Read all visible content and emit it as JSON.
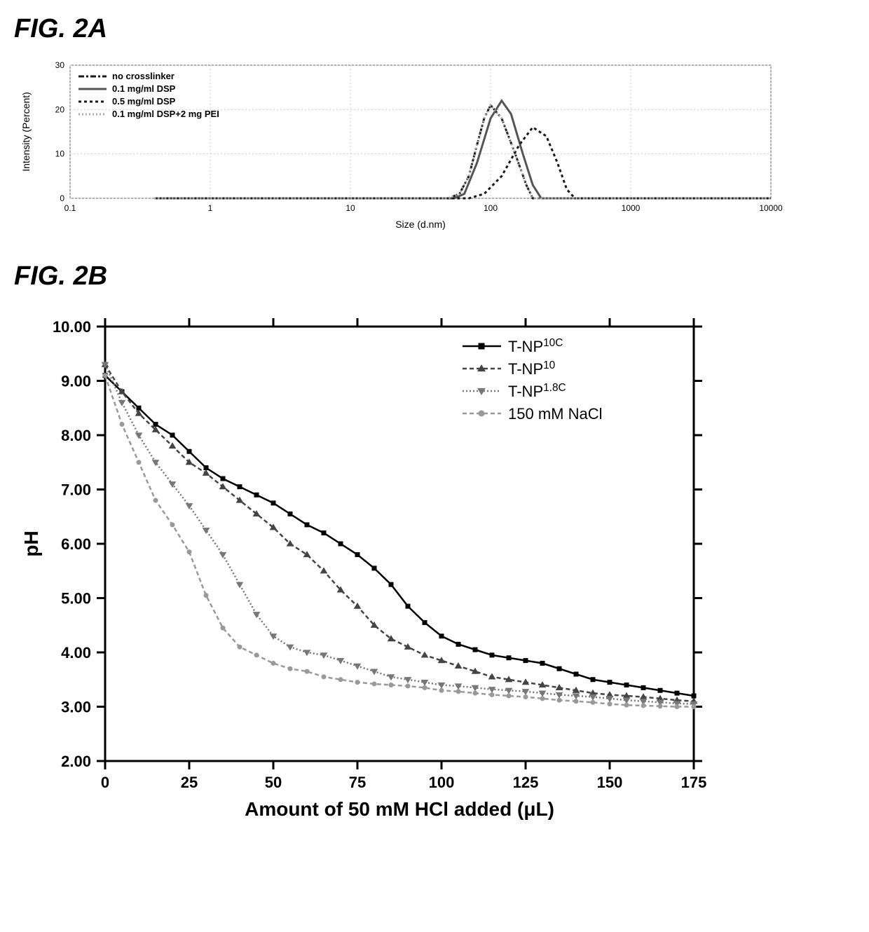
{
  "figureA": {
    "title": "FIG. 2A",
    "chart": {
      "type": "line",
      "xlabel": "Size (d.nm)",
      "ylabel": "Intensity (Percent)",
      "xscale": "log",
      "xlim": [
        0.1,
        10000
      ],
      "ylim": [
        0,
        30
      ],
      "xticks": [
        0.1,
        1,
        10,
        100,
        1000,
        10000
      ],
      "yticks": [
        0,
        10,
        20,
        30
      ],
      "background_color": "#ffffff",
      "grid_color": "#cccccc",
      "border_color": "#666666",
      "label_fontsize": 14,
      "tick_fontsize": 12,
      "legend": {
        "position": "top-left",
        "fontsize": 13,
        "fontweight": "bold",
        "items": [
          {
            "label": "no crosslinker",
            "color": "#1a1a1a",
            "dash": "dashdot",
            "width": 3
          },
          {
            "label": "0.1 mg/ml DSP",
            "color": "#555555",
            "dash": "solid",
            "width": 3
          },
          {
            "label": "0.5 mg/ml DSP",
            "color": "#1a1a1a",
            "dash": "dotted",
            "width": 3
          },
          {
            "label": "0.1 mg/ml DSP+2 mg PEI",
            "color": "#aaaaaa",
            "dash": "dot-light",
            "width": 3
          }
        ]
      },
      "series": [
        {
          "name": "no_crosslinker",
          "color": "#1a1a1a",
          "dash": "8,3,3,3",
          "width": 3,
          "x": [
            0.4,
            50,
            60,
            70,
            80,
            90,
            100,
            120,
            150,
            180,
            200,
            10000
          ],
          "y": [
            0,
            0,
            1,
            5,
            12,
            18,
            21,
            18,
            10,
            3,
            0,
            0
          ]
        },
        {
          "name": "dsp_01",
          "color": "#555555",
          "dash": "none",
          "width": 3,
          "x": [
            0.4,
            55,
            65,
            80,
            100,
            120,
            140,
            170,
            200,
            230,
            10000
          ],
          "y": [
            0,
            0,
            1,
            8,
            18,
            22,
            19,
            10,
            3,
            0,
            0
          ]
        },
        {
          "name": "dsp_05",
          "color": "#1a1a1a",
          "dash": "4,4",
          "width": 3,
          "x": [
            0.4,
            70,
            90,
            120,
            160,
            200,
            250,
            300,
            350,
            400,
            10000
          ],
          "y": [
            0,
            0,
            1,
            5,
            12,
            16,
            14,
            8,
            2,
            0,
            0
          ]
        },
        {
          "name": "dsp_pei",
          "color": "#aaaaaa",
          "dash": "2,3",
          "width": 3,
          "x": [
            0.4,
            50,
            60,
            70,
            80,
            90,
            100,
            120,
            150,
            180,
            200,
            10000
          ],
          "y": [
            0,
            0,
            1,
            5,
            12,
            18,
            21,
            18,
            10,
            3,
            0,
            0
          ]
        }
      ]
    }
  },
  "figureB": {
    "title": "FIG. 2B",
    "chart": {
      "type": "line-scatter",
      "xlabel": "Amount of 50 mM HCl added (μL)",
      "ylabel": "pH",
      "xscale": "linear",
      "xlim": [
        0,
        175
      ],
      "ylim": [
        2.0,
        10.0
      ],
      "xticks": [
        0,
        25,
        50,
        75,
        100,
        125,
        150,
        175
      ],
      "yticks": [
        2.0,
        3.0,
        4.0,
        5.0,
        6.0,
        7.0,
        8.0,
        9.0,
        10.0
      ],
      "ytick_labels": [
        "2.00",
        "3.00",
        "4.00",
        "5.00",
        "6.00",
        "7.00",
        "8.00",
        "9.00",
        "10.00"
      ],
      "background_color": "#ffffff",
      "border_color": "#000000",
      "border_width": 3,
      "label_fontsize": 28,
      "label_fontweight": "bold",
      "tick_fontsize": 22,
      "tick_fontweight": "bold",
      "legend": {
        "position": "top-right",
        "fontsize": 22,
        "items": [
          {
            "label": "T-NP",
            "sup": "10C",
            "marker": "square",
            "color": "#000000",
            "dash": "solid"
          },
          {
            "label": "T-NP",
            "sup": "10",
            "marker": "triangle-up",
            "color": "#444444",
            "dash": "dash"
          },
          {
            "label": "T-NP",
            "sup": "1.8C",
            "marker": "triangle-down",
            "color": "#777777",
            "dash": "dot"
          },
          {
            "label": "150 mM NaCl",
            "sup": "",
            "marker": "circle",
            "color": "#999999",
            "dash": "dash"
          }
        ]
      },
      "series": [
        {
          "name": "tnp10c",
          "color": "#000000",
          "dash": "none",
          "width": 2.5,
          "marker": "square",
          "marker_size": 7,
          "x": [
            0,
            5,
            10,
            15,
            20,
            25,
            30,
            35,
            40,
            45,
            50,
            55,
            60,
            65,
            70,
            75,
            80,
            85,
            90,
            95,
            100,
            105,
            110,
            115,
            120,
            125,
            130,
            135,
            140,
            145,
            150,
            155,
            160,
            165,
            170,
            175
          ],
          "y": [
            9.1,
            8.8,
            8.5,
            8.2,
            8.0,
            7.7,
            7.4,
            7.2,
            7.05,
            6.9,
            6.75,
            6.55,
            6.35,
            6.2,
            6.0,
            5.8,
            5.55,
            5.25,
            4.85,
            4.55,
            4.3,
            4.15,
            4.05,
            3.95,
            3.9,
            3.85,
            3.8,
            3.7,
            3.6,
            3.5,
            3.45,
            3.4,
            3.35,
            3.3,
            3.25,
            3.2
          ]
        },
        {
          "name": "tnp10",
          "color": "#444444",
          "dash": "6,4",
          "width": 2.5,
          "marker": "triangle-up",
          "marker_size": 8,
          "x": [
            0,
            5,
            10,
            15,
            20,
            25,
            30,
            35,
            40,
            45,
            50,
            55,
            60,
            65,
            70,
            75,
            80,
            85,
            90,
            95,
            100,
            105,
            110,
            115,
            120,
            125,
            130,
            135,
            140,
            145,
            150,
            155,
            160,
            165,
            170,
            175
          ],
          "y": [
            9.3,
            8.8,
            8.4,
            8.1,
            7.8,
            7.5,
            7.3,
            7.05,
            6.8,
            6.55,
            6.3,
            6.0,
            5.8,
            5.5,
            5.15,
            4.85,
            4.5,
            4.25,
            4.1,
            3.95,
            3.85,
            3.75,
            3.65,
            3.55,
            3.5,
            3.45,
            3.4,
            3.35,
            3.3,
            3.25,
            3.22,
            3.2,
            3.18,
            3.15,
            3.12,
            3.1
          ]
        },
        {
          "name": "tnp18c",
          "color": "#777777",
          "dash": "2,3",
          "width": 2.5,
          "marker": "triangle-down",
          "marker_size": 8,
          "x": [
            0,
            5,
            10,
            15,
            20,
            25,
            30,
            35,
            40,
            45,
            50,
            55,
            60,
            65,
            70,
            75,
            80,
            85,
            90,
            95,
            100,
            105,
            110,
            115,
            120,
            125,
            130,
            135,
            140,
            145,
            150,
            155,
            160,
            165,
            170,
            175
          ],
          "y": [
            9.3,
            8.6,
            8.0,
            7.5,
            7.1,
            6.7,
            6.25,
            5.8,
            5.25,
            4.7,
            4.3,
            4.1,
            4.0,
            3.95,
            3.85,
            3.75,
            3.65,
            3.55,
            3.5,
            3.45,
            3.4,
            3.38,
            3.35,
            3.32,
            3.3,
            3.28,
            3.25,
            3.22,
            3.2,
            3.18,
            3.15,
            3.12,
            3.1,
            3.08,
            3.06,
            3.05
          ]
        },
        {
          "name": "nacl",
          "color": "#999999",
          "dash": "6,4",
          "width": 2.5,
          "marker": "circle",
          "marker_size": 7,
          "x": [
            0,
            5,
            10,
            15,
            20,
            25,
            30,
            35,
            40,
            45,
            50,
            55,
            60,
            65,
            70,
            75,
            80,
            85,
            90,
            95,
            100,
            105,
            110,
            115,
            120,
            125,
            130,
            135,
            140,
            145,
            150,
            155,
            160,
            165,
            170,
            175
          ],
          "y": [
            9.1,
            8.2,
            7.5,
            6.8,
            6.35,
            5.85,
            5.05,
            4.45,
            4.1,
            3.95,
            3.8,
            3.7,
            3.65,
            3.55,
            3.5,
            3.45,
            3.42,
            3.4,
            3.38,
            3.35,
            3.3,
            3.28,
            3.25,
            3.22,
            3.2,
            3.18,
            3.15,
            3.12,
            3.1,
            3.08,
            3.05,
            3.03,
            3.02,
            3.01,
            3.0,
            3.0
          ]
        }
      ]
    }
  }
}
